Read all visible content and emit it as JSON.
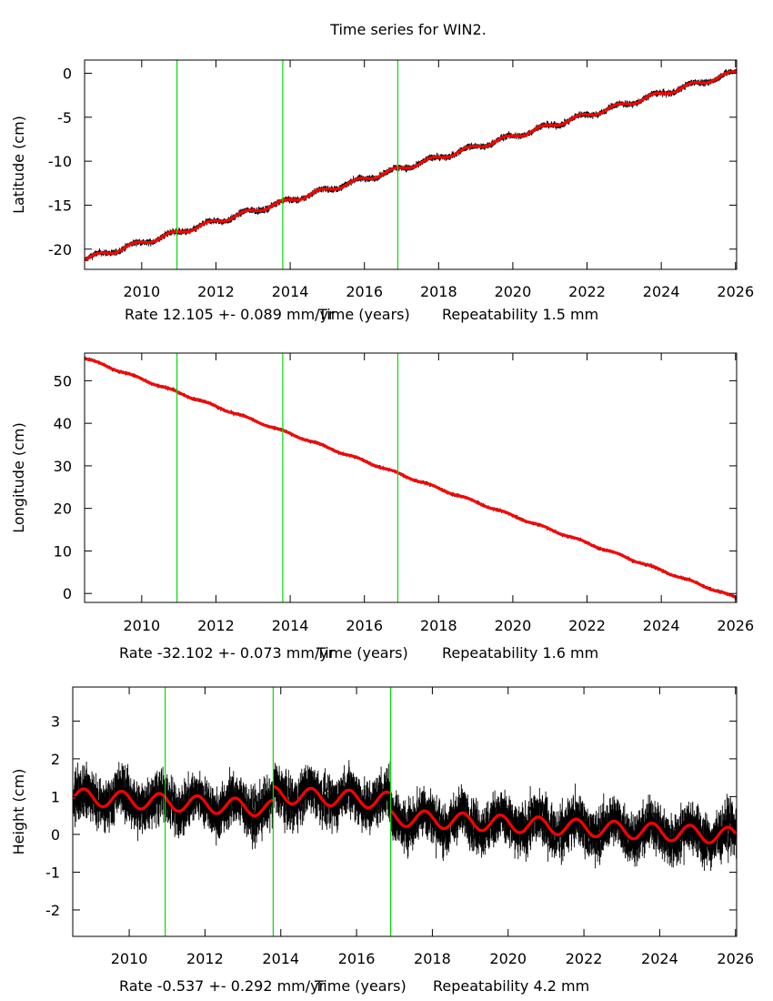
{
  "title": "Time series for WIN2.",
  "colors": {
    "data": "#000000",
    "model": "#ff0000",
    "offset_lines": "#00dd00",
    "frame": "#000000"
  },
  "chart_data": [
    {
      "type": "line",
      "name": "latitude",
      "ylabel": "Latitude (cm)",
      "xlabel_parts": [
        "Rate 12.105 +- 0.089 mm/yr",
        "Time (years)",
        "Repeatability 1.5 mm"
      ],
      "xlim": [
        2008.46,
        2026.03
      ],
      "ylim": [
        -22.3,
        1.5
      ],
      "xticks": [
        2010,
        2012,
        2014,
        2016,
        2018,
        2020,
        2022,
        2024,
        2026
      ],
      "xtick_labels": [
        "2010",
        "2012",
        "2014",
        "2016",
        "2018",
        "2020",
        "2022",
        "2024",
        "2026"
      ],
      "yticks": [
        0,
        -5,
        -10,
        -15,
        -20
      ],
      "ytick_labels": [
        "0",
        "-5",
        "-10",
        "-15",
        "-20"
      ],
      "offsets": [
        2010.95,
        2013.8,
        2016.9
      ],
      "model": {
        "start": 2008.5,
        "start_value": -21.1,
        "rate_cm_per_yr": 1.2105,
        "annual_amp": 0.25,
        "noise": 0.25,
        "segments": []
      },
      "grid": false
    },
    {
      "type": "line",
      "name": "longitude",
      "ylabel": "Longitude (cm)",
      "xlabel_parts": [
        "Rate -32.102 +- 0.073 mm/yr",
        "Time (years)",
        "Repeatability 1.6 mm"
      ],
      "xlim": [
        2008.46,
        2026.03
      ],
      "ylim": [
        -2.1,
        56.5
      ],
      "xticks": [
        2010,
        2012,
        2014,
        2016,
        2018,
        2020,
        2022,
        2024,
        2026
      ],
      "xtick_labels": [
        "2010",
        "2012",
        "2014",
        "2016",
        "2018",
        "2020",
        "2022",
        "2024",
        "2026"
      ],
      "yticks": [
        50,
        40,
        30,
        20,
        10,
        0
      ],
      "ytick_labels": [
        "50",
        "40",
        "30",
        "20",
        "10",
        "0"
      ],
      "offsets": [
        2010.95,
        2013.8,
        2016.9
      ],
      "model": {
        "start": 2008.5,
        "start_value": 55.2,
        "rate_cm_per_yr": -3.2102,
        "annual_amp": 0.2,
        "noise": 0.3,
        "segments": []
      },
      "grid": false
    },
    {
      "type": "line",
      "name": "height",
      "ylabel": "Height (cm)",
      "xlabel_parts": [
        "Rate -0.537 +- 0.292 mm/yr",
        "Time (years)",
        "Repeatability 4.2 mm"
      ],
      "xlim": [
        2008.51,
        2026.03
      ],
      "ylim": [
        -2.7,
        3.9
      ],
      "xticks": [
        2010,
        2012,
        2014,
        2016,
        2018,
        2020,
        2022,
        2024,
        2026
      ],
      "xtick_labels": [
        "2010",
        "2012",
        "2014",
        "2016",
        "2018",
        "2020",
        "2022",
        "2024",
        "2026"
      ],
      "yticks": [
        3,
        2,
        1,
        0,
        -1,
        -2
      ],
      "ytick_labels": [
        "3",
        "2",
        "1",
        "0",
        "-1",
        "-2"
      ],
      "offsets": [
        2010.95,
        2013.8,
        2016.9
      ],
      "model": {
        "annual_amp": 0.22,
        "noise": 0.45,
        "segments": [
          {
            "from": 2008.5,
            "to": 2013.8,
            "start_value": 1.0,
            "rate_cm_per_yr": -0.06
          },
          {
            "from": 2013.8,
            "to": 2016.9,
            "start_value": 1.05,
            "rate_cm_per_yr": -0.05
          },
          {
            "from": 2016.9,
            "to": 2026.03,
            "start_value": 0.45,
            "rate_cm_per_yr": -0.054
          }
        ]
      },
      "grid": false
    }
  ]
}
